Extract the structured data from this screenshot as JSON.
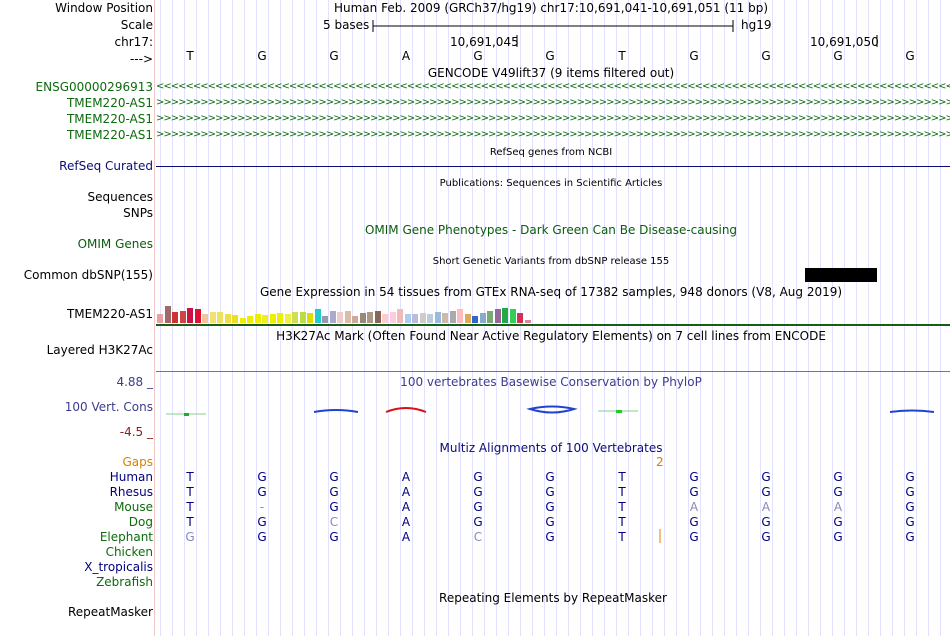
{
  "ruler": {
    "window_position_label": "Window Position",
    "window_position_text": "Human Feb. 2009 (GRCh37/hg19)   chr17:10,691,041-10,691,051 (11 bp)",
    "scale_label": "Scale",
    "scale_text": "5 bases",
    "scale_db": "hg19",
    "chrom_label": "chr17:",
    "pos_a": "10,691,045",
    "pos_b": "10,691,050",
    "strand_label": "--->",
    "bases": [
      "T",
      "G",
      "G",
      "A",
      "G",
      "G",
      "T",
      "G",
      "G",
      "G",
      "G"
    ]
  },
  "gencode": {
    "title": "GENCODE V49lift37 (9 items filtered out)",
    "rows": [
      {
        "label": "ENSG00000296913",
        "strand": "<"
      },
      {
        "label": "TMEM220-AS1",
        "strand": ">"
      },
      {
        "label": "TMEM220-AS1",
        "strand": ">"
      },
      {
        "label": "TMEM220-AS1",
        "strand": ">"
      }
    ]
  },
  "refseq": {
    "title": "RefSeq genes from NCBI",
    "label": "RefSeq Curated"
  },
  "publications": {
    "title": "Publications: Sequences in Scientific Articles",
    "label1": "Sequences",
    "label2": "SNPs"
  },
  "omim": {
    "title": "OMIM Gene Phenotypes - Dark Green Can Be Disease-causing",
    "label": "OMIM Genes"
  },
  "dbsnp": {
    "title": "Short Genetic Variants from dbSNP release 155",
    "label": "Common dbSNP(155)"
  },
  "gtex": {
    "title": "Gene Expression in 54 tissues from GTEx RNA-seq of 17382 samples, 948 donors (V8, Aug 2019)",
    "label": "TMEM220-AS1",
    "bars": [
      {
        "h": 0.45,
        "c": "#e6a2a2"
      },
      {
        "h": 0.85,
        "c": "#a06a6a"
      },
      {
        "h": 0.55,
        "c": "#cc3333"
      },
      {
        "h": 0.6,
        "c": "#c44"
      },
      {
        "h": 0.75,
        "c": "#cc1144"
      },
      {
        "h": 0.7,
        "c": "#dd1133"
      },
      {
        "h": 0.45,
        "c": "#eec89a"
      },
      {
        "h": 0.55,
        "c": "#f2e070"
      },
      {
        "h": 0.55,
        "c": "#f0e060"
      },
      {
        "h": 0.45,
        "c": "#eedd44"
      },
      {
        "h": 0.4,
        "c": "#eedd22"
      },
      {
        "h": 0.25,
        "c": "#eeee00"
      },
      {
        "h": 0.35,
        "c": "#eeee00"
      },
      {
        "h": 0.45,
        "c": "#eeee00"
      },
      {
        "h": 0.4,
        "c": "#eeee22"
      },
      {
        "h": 0.45,
        "c": "#eeee00"
      },
      {
        "h": 0.5,
        "c": "#eeee00"
      },
      {
        "h": 0.45,
        "c": "#eeee44"
      },
      {
        "h": 0.55,
        "c": "#cce055"
      },
      {
        "h": 0.55,
        "c": "#bbdd44"
      },
      {
        "h": 0.5,
        "c": "#dddd00"
      },
      {
        "h": 0.7,
        "c": "#22cccc"
      },
      {
        "h": 0.35,
        "c": "#9999aa"
      },
      {
        "h": 0.6,
        "c": "#aaaacc"
      },
      {
        "h": 0.55,
        "c": "#eecccc"
      },
      {
        "h": 0.6,
        "c": "#ddbbaa"
      },
      {
        "h": 0.35,
        "c": "#ccaa99"
      },
      {
        "h": 0.5,
        "c": "#998877"
      },
      {
        "h": 0.55,
        "c": "#aa9988"
      },
      {
        "h": 0.6,
        "c": "#886655"
      },
      {
        "h": 0.45,
        "c": "#ffcccc"
      },
      {
        "h": 0.55,
        "c": "#ffccdd"
      },
      {
        "h": 0.7,
        "c": "#eebbbb"
      },
      {
        "h": 0.45,
        "c": "#aaccee"
      },
      {
        "h": 0.45,
        "c": "#bbbbdd"
      },
      {
        "h": 0.5,
        "c": "#cccccc"
      },
      {
        "h": 0.45,
        "c": "#bbccdd"
      },
      {
        "h": 0.55,
        "c": "#99bbdd"
      },
      {
        "h": 0.5,
        "c": "#ccbbaa"
      },
      {
        "h": 0.6,
        "c": "#aaaaaa"
      },
      {
        "h": 0.7,
        "c": "#ffbbbb"
      },
      {
        "h": 0.45,
        "c": "#ddaa55"
      },
      {
        "h": 0.35,
        "c": "#3366cc"
      },
      {
        "h": 0.5,
        "c": "#88aacc"
      },
      {
        "h": 0.6,
        "c": "#77aa77"
      },
      {
        "h": 0.7,
        "c": "#996699"
      },
      {
        "h": 0.75,
        "c": "#22aa44"
      },
      {
        "h": 0.7,
        "c": "#33cc55"
      },
      {
        "h": 0.5,
        "c": "#cc3355"
      },
      {
        "h": 0.15,
        "c": "#dd8899"
      }
    ]
  },
  "h3k27ac": {
    "title": "H3K27Ac Mark (Often Found Near Active Regulatory Elements) on 7 cell lines from ENCODE",
    "label": "Layered H3K27Ac"
  },
  "phylop": {
    "title": "100 vertebrates Basewise Conservation by PhyloP",
    "label": "100 Vert. Cons",
    "max": "4.88 _",
    "min": "-4.5 _"
  },
  "multiz": {
    "title": "Multiz Alignments of 100 Vertebrates",
    "gaps_label": "Gaps",
    "gaps_value": "2",
    "species": [
      {
        "name": "Human",
        "bases": [
          "T",
          "G",
          "G",
          "A",
          "G",
          "G",
          "T",
          "G",
          "G",
          "G",
          "G"
        ]
      },
      {
        "name": "Rhesus",
        "bases": [
          "T",
          "G",
          "G",
          "A",
          "G",
          "G",
          "T",
          "G",
          "G",
          "G",
          "G"
        ]
      },
      {
        "name": "Mouse",
        "bases": [
          "T",
          "-",
          "G",
          "A",
          "G",
          "G",
          "T",
          "A",
          "A",
          "A",
          "G"
        ]
      },
      {
        "name": "Dog",
        "bases": [
          "T",
          "G",
          "C",
          "A",
          "G",
          "G",
          "T",
          "G",
          "G",
          "G",
          "G"
        ]
      },
      {
        "name": "Elephant",
        "bases": [
          "G",
          "G",
          "G",
          "A",
          "C",
          "G",
          "T",
          "G",
          "G",
          "G",
          "G"
        ]
      },
      {
        "name": "Chicken",
        "bases": []
      },
      {
        "name": "X_tropicalis",
        "bases": []
      },
      {
        "name": "Zebrafish",
        "bases": []
      }
    ]
  },
  "repeatmasker": {
    "title": "Repeating Elements by RepeatMasker",
    "label": "RepeatMasker"
  },
  "colors": {
    "gencode": "#0c6b0c",
    "refseq": "#0c0c78",
    "omim": "#0b5c0b",
    "conservation": "#3c3c8c",
    "gaps": "#d98200",
    "navy": "#000080"
  }
}
